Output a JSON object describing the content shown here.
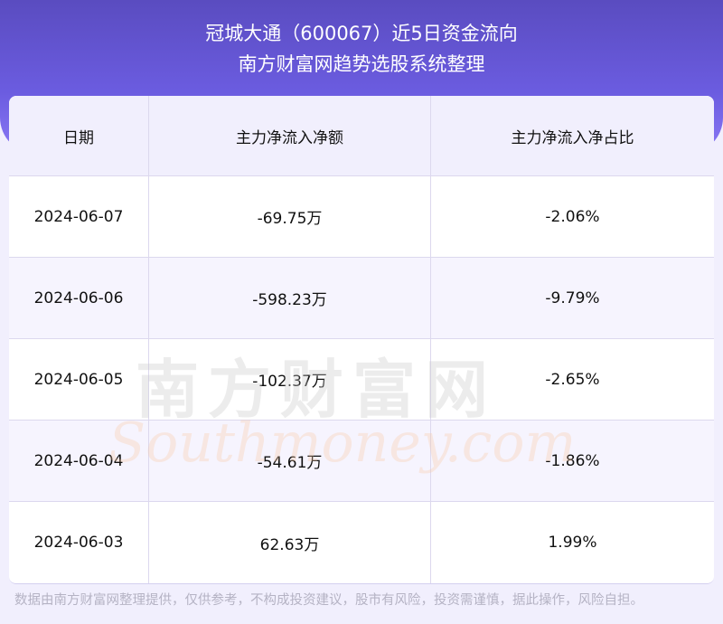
{
  "header": {
    "title": "冠城大通（600067）近5日资金流向",
    "subtitle": "南方财富网趋势选股系统整理"
  },
  "table": {
    "columns": [
      "日期",
      "主力净流入净额",
      "主力净流入净占比"
    ],
    "rows": [
      [
        "2024-06-07",
        "-69.75万",
        "-2.06%"
      ],
      [
        "2024-06-06",
        "-598.23万",
        "-9.79%"
      ],
      [
        "2024-06-05",
        "-102.37万",
        "-2.65%"
      ],
      [
        "2024-06-04",
        "-54.61万",
        "-1.86%"
      ],
      [
        "2024-06-03",
        "62.63万",
        "1.99%"
      ]
    ]
  },
  "watermark": {
    "cn": "南方财富网",
    "en": "Southmoney.com"
  },
  "footer": "数据由南方财富网整理提供，仅供参考，不构成投资建议，股市有风险，投资需谨慎，据此操作，风险自担。"
}
